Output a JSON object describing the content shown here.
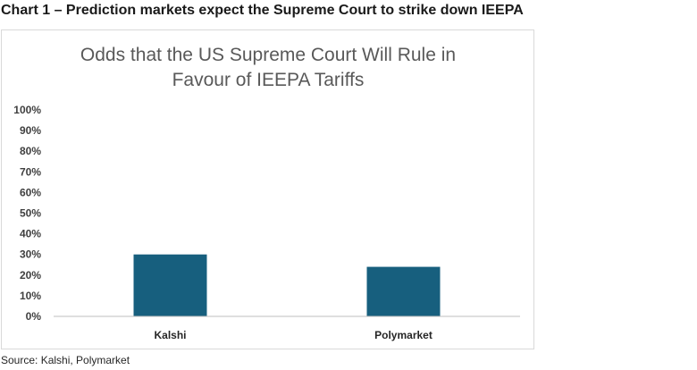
{
  "heading": "Chart 1 – Prediction markets expect the Supreme Court to strike down IEEPA",
  "source": "Source: Kalshi, Polymarket",
  "colors": {
    "bar": "#175f7e",
    "axis": "#bfbfbf",
    "title": "#595959"
  },
  "chart_data": {
    "type": "bar",
    "title": "Odds that the US Supreme Court Will Rule in Favour of IEEPA Tariffs",
    "title_lines": [
      "Odds that the US Supreme Court Will Rule in",
      "Favour of IEEPA Tariffs"
    ],
    "categories": [
      "Kalshi",
      "Polymarket"
    ],
    "values": [
      30,
      24
    ],
    "ylim": [
      0,
      100
    ],
    "yticks": [
      0,
      10,
      20,
      30,
      40,
      50,
      60,
      70,
      80,
      90,
      100
    ],
    "ytick_labels": [
      "0%",
      "10%",
      "20%",
      "30%",
      "40%",
      "50%",
      "60%",
      "70%",
      "80%",
      "90%",
      "100%"
    ],
    "xlabel": "",
    "ylabel": "",
    "grid": false,
    "legend": "none"
  }
}
